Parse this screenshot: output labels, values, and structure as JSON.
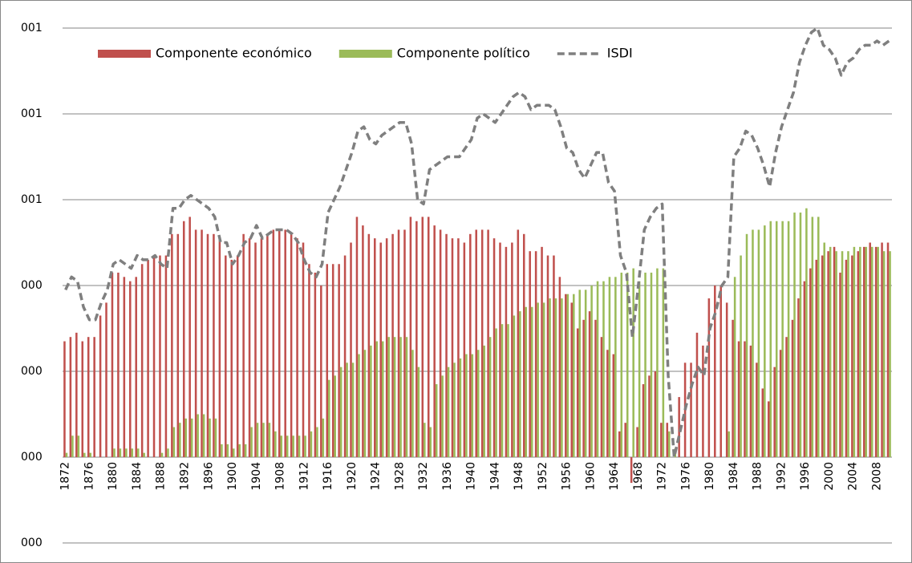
{
  "chart_data": {
    "type": "bar",
    "categories": [
      "1872",
      null,
      null,
      null,
      "1876",
      null,
      null,
      null,
      "1880",
      null,
      null,
      null,
      "1884",
      null,
      null,
      null,
      "1888",
      null,
      null,
      null,
      "1892",
      null,
      null,
      null,
      "1896",
      null,
      null,
      null,
      "1900",
      null,
      null,
      null,
      "1904",
      null,
      null,
      null,
      "1908",
      null,
      null,
      null,
      "1912",
      null,
      null,
      null,
      "1916",
      null,
      null,
      null,
      "1920",
      null,
      null,
      null,
      "1924",
      null,
      null,
      null,
      "1928",
      null,
      null,
      null,
      "1932",
      null,
      null,
      null,
      "1936",
      null,
      null,
      null,
      "1940",
      null,
      null,
      null,
      "1944",
      null,
      null,
      null,
      "1948",
      null,
      null,
      null,
      "1952",
      null,
      null,
      null,
      "1956",
      null,
      null,
      null,
      "1960",
      null,
      null,
      null,
      "1964",
      null,
      null,
      null,
      "1968",
      null,
      null,
      null,
      "1972",
      null,
      null,
      null,
      "1976",
      null,
      null,
      null,
      "1980",
      null,
      null,
      null,
      "1984",
      null,
      null,
      null,
      "1988",
      null,
      null,
      null,
      "1992",
      null,
      null,
      null,
      "1996",
      null,
      null,
      null,
      "2000",
      null,
      null,
      null,
      "2004",
      null,
      null,
      null,
      "2008",
      null,
      null
    ],
    "series": [
      {
        "name": "Componente económico",
        "color": "#c0504d",
        "values": [
          0.27,
          0.28,
          0.29,
          0.27,
          0.28,
          0.28,
          0.33,
          0.36,
          0.43,
          0.43,
          0.42,
          0.41,
          0.42,
          0.45,
          0.46,
          0.47,
          0.47,
          0.47,
          0.52,
          0.52,
          0.55,
          0.56,
          0.53,
          0.53,
          0.52,
          0.52,
          0.51,
          0.47,
          0.46,
          0.47,
          0.52,
          0.51,
          0.5,
          0.51,
          0.52,
          0.53,
          0.53,
          0.53,
          0.52,
          0.51,
          0.5,
          0.45,
          0.43,
          0.4,
          0.45,
          0.45,
          0.45,
          0.47,
          0.5,
          0.56,
          0.54,
          0.52,
          0.51,
          0.5,
          0.51,
          0.52,
          0.53,
          0.53,
          0.56,
          0.55,
          0.56,
          0.56,
          0.54,
          0.53,
          0.52,
          0.51,
          0.51,
          0.5,
          0.52,
          0.53,
          0.53,
          0.53,
          0.51,
          0.5,
          0.49,
          0.5,
          0.53,
          0.52,
          0.48,
          0.48,
          0.49,
          0.47,
          0.47,
          0.42,
          0.38,
          0.36,
          0.3,
          0.32,
          0.34,
          0.32,
          0.28,
          0.25,
          0.24,
          0.06,
          0.08,
          -0.06,
          0.07,
          0.17,
          0.19,
          0.2,
          0.08,
          0.08,
          0.0,
          0.14,
          0.22,
          0.22,
          0.29,
          0.26,
          0.37,
          0.4,
          0.4,
          0.36,
          0.32,
          0.27,
          0.27,
          0.26,
          0.22,
          0.16,
          0.13,
          0.21,
          0.25,
          0.28,
          0.32,
          0.37,
          0.41,
          0.44,
          0.46,
          0.47,
          0.48,
          0.49,
          0.43,
          0.46,
          0.47,
          0.48,
          0.49,
          0.5,
          0.49,
          0.5,
          0.5
        ]
      },
      {
        "name": "Componente político",
        "color": "#9bbb59",
        "values": [
          0.01,
          0.05,
          0.05,
          0.01,
          0.01,
          0,
          0,
          0,
          0.02,
          0.02,
          0.02,
          0.02,
          0.02,
          0.01,
          0,
          0,
          0.01,
          0.02,
          0.07,
          0.08,
          0.09,
          0.09,
          0.1,
          0.1,
          0.09,
          0.09,
          0.03,
          0.03,
          0.02,
          0.03,
          0.03,
          0.07,
          0.08,
          0.08,
          0.08,
          0.06,
          0.05,
          0.05,
          0.05,
          0.05,
          0.05,
          0.06,
          0.07,
          0.09,
          0.18,
          0.19,
          0.21,
          0.22,
          0.22,
          0.24,
          0.25,
          0.26,
          0.27,
          0.27,
          0.28,
          0.28,
          0.28,
          0.28,
          0.25,
          0.21,
          0.08,
          0.07,
          0.17,
          0.19,
          0.21,
          0.22,
          0.23,
          0.24,
          0.24,
          0.25,
          0.26,
          0.28,
          0.3,
          0.31,
          0.31,
          0.33,
          0.34,
          0.35,
          0.35,
          0.36,
          0.36,
          0.37,
          0.37,
          0.37,
          0.38,
          0.38,
          0.39,
          0.39,
          0.4,
          0.41,
          0.41,
          0.42,
          0.42,
          0.43,
          0.43,
          0.44,
          0.41,
          0.43,
          0.43,
          0.44,
          0.44,
          0.06,
          0.02,
          0,
          0,
          0,
          0,
          0,
          0,
          0,
          0,
          0.06,
          0.42,
          0.47,
          0.52,
          0.53,
          0.53,
          0.54,
          0.55,
          0.55,
          0.55,
          0.55,
          0.57,
          0.57,
          0.58,
          0.56,
          0.56,
          0.5,
          0.49,
          0.48,
          0.48,
          0.48,
          0.49,
          0.49,
          0.49,
          0.49,
          0.49,
          0.48,
          0.48
        ]
      },
      {
        "name": "ISDI",
        "type": "line",
        "color": "#7f7f7f",
        "dashed": true,
        "values": [
          0.39,
          0.42,
          0.41,
          0.35,
          0.32,
          0.32,
          0.36,
          0.39,
          0.45,
          0.46,
          0.45,
          0.44,
          0.47,
          0.46,
          0.46,
          0.47,
          0.45,
          0.44,
          0.58,
          0.58,
          0.6,
          0.61,
          0.6,
          0.59,
          0.58,
          0.56,
          0.5,
          0.5,
          0.45,
          0.47,
          0.5,
          0.51,
          0.54,
          0.51,
          0.52,
          0.53,
          0.53,
          0.53,
          0.52,
          0.5,
          0.46,
          0.43,
          0.42,
          0.45,
          0.57,
          0.6,
          0.63,
          0.67,
          0.71,
          0.76,
          0.77,
          0.74,
          0.73,
          0.75,
          0.76,
          0.77,
          0.78,
          0.78,
          0.73,
          0.6,
          0.59,
          0.67,
          0.68,
          0.69,
          0.7,
          0.7,
          0.7,
          0.72,
          0.74,
          0.79,
          0.8,
          0.79,
          0.78,
          0.8,
          0.82,
          0.84,
          0.85,
          0.84,
          0.81,
          0.82,
          0.82,
          0.82,
          0.81,
          0.77,
          0.72,
          0.71,
          0.67,
          0.65,
          0.68,
          0.71,
          0.71,
          0.64,
          0.62,
          0.47,
          0.43,
          0.28,
          0.4,
          0.53,
          0.56,
          0.58,
          0.59,
          0.19,
          0.0,
          0.06,
          0.12,
          0.17,
          0.21,
          0.19,
          0.3,
          0.34,
          0.4,
          0.42,
          0.7,
          0.72,
          0.76,
          0.75,
          0.72,
          0.68,
          0.63,
          0.71,
          0.77,
          0.81,
          0.85,
          0.92,
          0.96,
          0.99,
          1.0,
          0.96,
          0.95,
          0.93,
          0.89,
          0.92,
          0.93,
          0.95,
          0.96,
          0.96,
          0.97,
          0.96,
          0.97
        ]
      }
    ],
    "ylim": [
      -0.2,
      1.0
    ],
    "yticks": [
      {
        "value": -0.2,
        "label": "000"
      },
      {
        "value": 0,
        "label": "000"
      },
      {
        "value": 0.2,
        "label": "000"
      },
      {
        "value": 0.4,
        "label": "000"
      },
      {
        "value": 0.6,
        "label": "001"
      },
      {
        "value": 0.8,
        "label": "001"
      },
      {
        "value": 1.0,
        "label": "001"
      }
    ],
    "grid": true,
    "legend": "top-left"
  }
}
